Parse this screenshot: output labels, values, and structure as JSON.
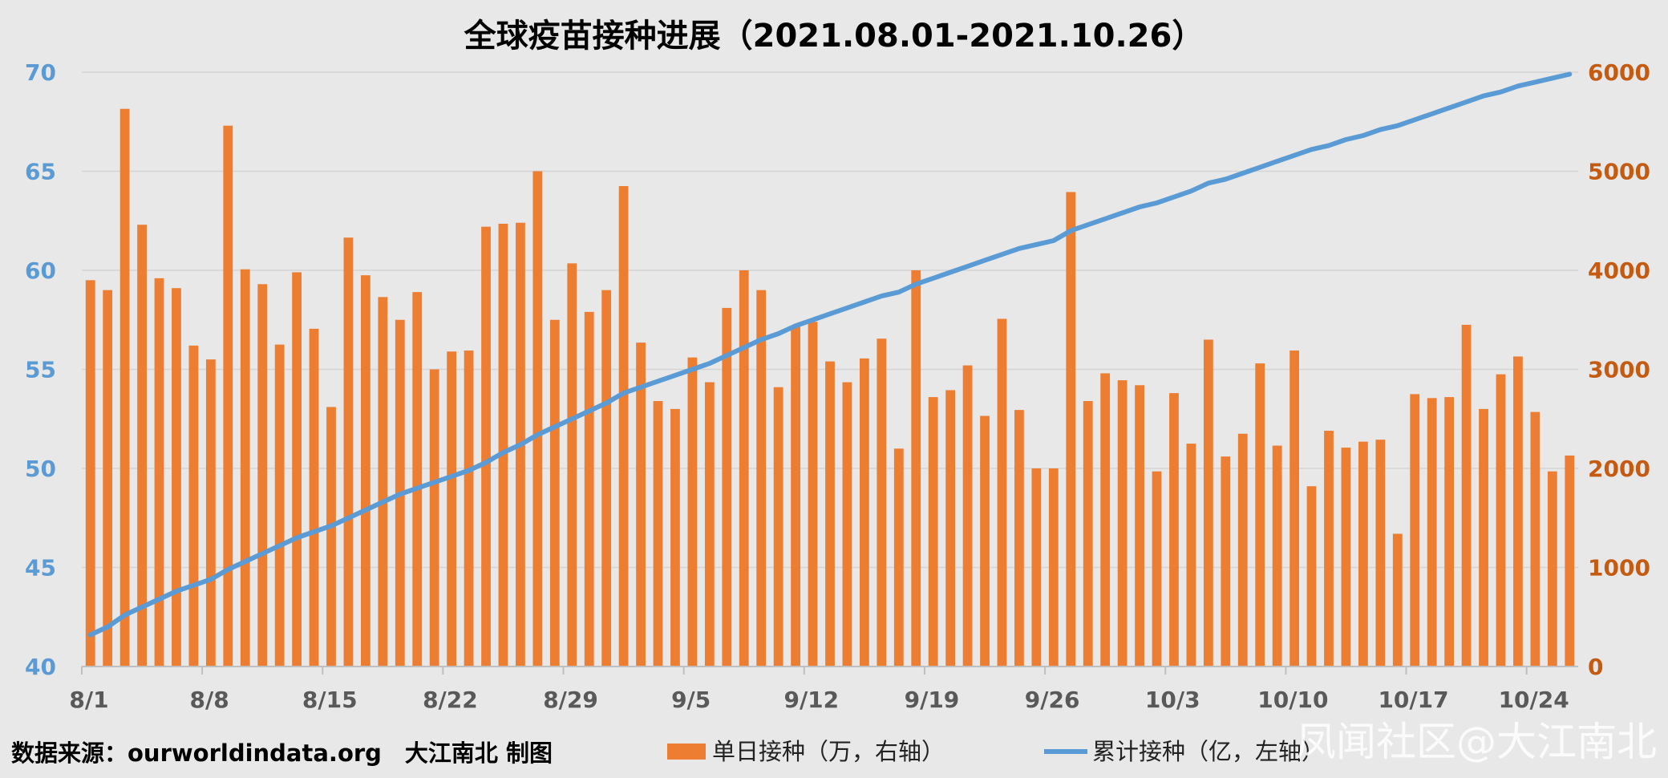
{
  "chart_data": {
    "type": "bar+line",
    "title": "全球疫苗接种进展（2021.08.01-2021.10.26）",
    "x_start": "8/1",
    "x_tick_labels": [
      "8/1",
      "8/8",
      "8/15",
      "8/22",
      "8/29",
      "9/5",
      "9/12",
      "9/19",
      "9/26",
      "10/3",
      "10/10",
      "10/17",
      "10/24"
    ],
    "y_left": {
      "min": 40,
      "max": 70,
      "ticks": [
        "40",
        "45",
        "50",
        "55",
        "60",
        "65",
        "70"
      ],
      "color": "#5b9bd5"
    },
    "y_right": {
      "min": 0,
      "max": 6000,
      "ticks": [
        "0",
        "1000",
        "2000",
        "3000",
        "4000",
        "5000",
        "6000"
      ],
      "color": "#c55a11"
    },
    "grid": true,
    "legend_position": "bottom",
    "series": [
      {
        "name": "单日接种（万，右轴）",
        "type": "bar",
        "axis": "right",
        "color": "#ed7d31",
        "values": [
          3900,
          3800,
          5630,
          4460,
          3920,
          3820,
          3240,
          3100,
          5460,
          4010,
          3860,
          3250,
          3980,
          3410,
          2620,
          4330,
          3950,
          3730,
          3500,
          3780,
          3000,
          3180,
          3190,
          4440,
          4470,
          4480,
          5000,
          3500,
          4070,
          3580,
          3800,
          4850,
          3270,
          2680,
          2600,
          3120,
          2870,
          3620,
          4000,
          3800,
          2820,
          3430,
          3480,
          3080,
          2870,
          3110,
          3310,
          2200,
          4000,
          2720,
          2790,
          3040,
          2530,
          3510,
          2590,
          2000,
          2000,
          4790,
          2680,
          2960,
          2890,
          2840,
          1970,
          2760,
          2250,
          3300,
          2120,
          2350,
          3060,
          2230,
          3190,
          1820,
          2380,
          2210,
          2270,
          2290,
          1340,
          2750,
          2710,
          2720,
          3450,
          2600,
          2950,
          3130,
          2570,
          1970,
          2130
        ],
        "legend_label": "单日接种（万，右轴）"
      },
      {
        "name": "累计接种（亿，左轴）",
        "type": "line",
        "axis": "left",
        "color": "#5b9bd5",
        "values": [
          41.6,
          42.0,
          42.6,
          43.0,
          43.4,
          43.8,
          44.1,
          44.4,
          44.9,
          45.3,
          45.7,
          46.1,
          46.5,
          46.8,
          47.1,
          47.5,
          47.9,
          48.3,
          48.7,
          49.0,
          49.3,
          49.6,
          49.9,
          50.3,
          50.8,
          51.2,
          51.7,
          52.1,
          52.5,
          52.9,
          53.3,
          53.8,
          54.1,
          54.4,
          54.7,
          55.0,
          55.3,
          55.7,
          56.1,
          56.5,
          56.8,
          57.2,
          57.5,
          57.8,
          58.1,
          58.4,
          58.7,
          58.9,
          59.3,
          59.6,
          59.9,
          60.2,
          60.5,
          60.8,
          61.1,
          61.3,
          61.5,
          62.0,
          62.3,
          62.6,
          62.9,
          63.2,
          63.4,
          63.7,
          64.0,
          64.4,
          64.6,
          64.9,
          65.2,
          65.5,
          65.8,
          66.1,
          66.3,
          66.6,
          66.8,
          67.1,
          67.3,
          67.6,
          67.9,
          68.2,
          68.5,
          68.8,
          69.0,
          69.3,
          69.5,
          69.7,
          69.9
        ],
        "legend_label": "累计接种（亿，左轴）"
      }
    ]
  },
  "footer": {
    "source": "数据来源：ourworldindata.org　大江南北 制图",
    "watermark": "凤闻社区@大江南北"
  }
}
